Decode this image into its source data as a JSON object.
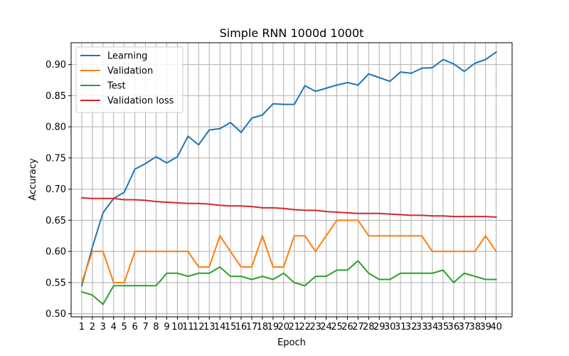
{
  "chart_data": {
    "type": "line",
    "title": "Simple RNN 1000d 1000t",
    "xlabel": "Epoch",
    "ylabel": "Accuracy",
    "xlim": [
      0,
      41.5
    ],
    "ylim": [
      0.495,
      0.935
    ],
    "x": [
      1,
      2,
      3,
      4,
      5,
      6,
      7,
      8,
      9,
      10,
      11,
      12,
      13,
      14,
      15,
      16,
      17,
      18,
      19,
      20,
      21,
      22,
      23,
      24,
      25,
      26,
      27,
      28,
      29,
      30,
      31,
      32,
      33,
      34,
      35,
      36,
      37,
      38,
      39,
      40
    ],
    "x_tick_labels": [
      "1",
      "2",
      "3",
      "4",
      "5",
      "6",
      "7",
      "8",
      "9",
      "10",
      "11",
      "12",
      "13",
      "14",
      "15",
      "16",
      "17",
      "18",
      "19",
      "20",
      "21",
      "22",
      "23",
      "24",
      "25",
      "26",
      "27",
      "28",
      "29",
      "30",
      "31",
      "32",
      "33",
      "34",
      "35",
      "36",
      "37",
      "38",
      "39",
      "40"
    ],
    "y_ticks": [
      0.5,
      0.55,
      0.6,
      0.65,
      0.7,
      0.75,
      0.8,
      0.85,
      0.9
    ],
    "y_tick_labels": [
      "0.50",
      "0.55",
      "0.60",
      "0.65",
      "0.70",
      "0.75",
      "0.80",
      "0.85",
      "0.90"
    ],
    "grid": true,
    "legend_position": "upper-left",
    "series": [
      {
        "name": "Learning",
        "color": "#1f77b4",
        "values": [
          0.545,
          0.607,
          0.662,
          0.685,
          0.695,
          0.732,
          0.741,
          0.752,
          0.742,
          0.752,
          0.785,
          0.771,
          0.795,
          0.797,
          0.807,
          0.791,
          0.814,
          0.819,
          0.837,
          0.836,
          0.836,
          0.866,
          0.857,
          0.862,
          0.867,
          0.871,
          0.867,
          0.885,
          0.879,
          0.873,
          0.888,
          0.886,
          0.894,
          0.895,
          0.908,
          0.901,
          0.889,
          0.902,
          0.908,
          0.92
        ]
      },
      {
        "name": "Validation",
        "color": "#ff7f0e",
        "values": [
          0.55,
          0.6,
          0.6,
          0.55,
          0.55,
          0.6,
          0.6,
          0.6,
          0.6,
          0.6,
          0.6,
          0.575,
          0.575,
          0.625,
          0.6,
          0.575,
          0.575,
          0.625,
          0.575,
          0.575,
          0.625,
          0.625,
          0.6,
          0.625,
          0.65,
          0.65,
          0.65,
          0.625,
          0.625,
          0.625,
          0.625,
          0.625,
          0.625,
          0.6,
          0.6,
          0.6,
          0.6,
          0.6,
          0.625,
          0.6
        ]
      },
      {
        "name": "Test",
        "color": "#2ca02c",
        "values": [
          0.535,
          0.53,
          0.515,
          0.545,
          0.545,
          0.545,
          0.545,
          0.545,
          0.565,
          0.565,
          0.56,
          0.565,
          0.565,
          0.575,
          0.56,
          0.56,
          0.555,
          0.56,
          0.555,
          0.565,
          0.55,
          0.545,
          0.56,
          0.56,
          0.57,
          0.57,
          0.585,
          0.565,
          0.555,
          0.555,
          0.565,
          0.565,
          0.565,
          0.565,
          0.57,
          0.55,
          0.565,
          0.56,
          0.555,
          0.555
        ]
      },
      {
        "name": "Validation loss",
        "color": "#d62728",
        "values": [
          0.686,
          0.685,
          0.685,
          0.685,
          0.683,
          0.683,
          0.682,
          0.68,
          0.679,
          0.678,
          0.677,
          0.677,
          0.676,
          0.674,
          0.673,
          0.673,
          0.672,
          0.67,
          0.67,
          0.669,
          0.667,
          0.666,
          0.666,
          0.664,
          0.663,
          0.662,
          0.661,
          0.661,
          0.661,
          0.66,
          0.659,
          0.658,
          0.658,
          0.657,
          0.657,
          0.656,
          0.656,
          0.656,
          0.656,
          0.655
        ]
      }
    ]
  }
}
